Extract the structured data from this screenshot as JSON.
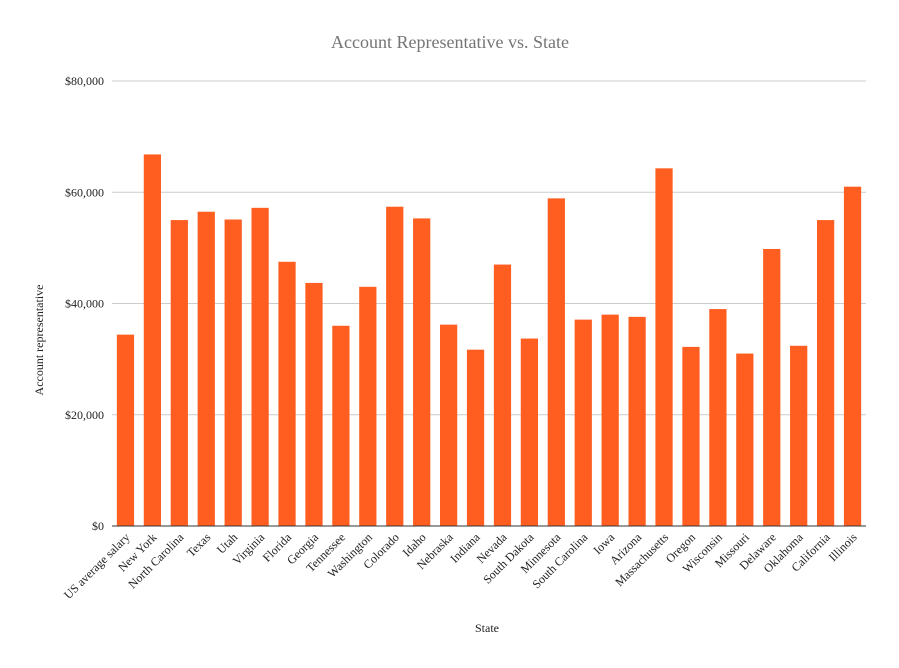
{
  "chart_data": {
    "type": "bar",
    "title": "Account Representative vs. State",
    "xlabel": "State",
    "ylabel": "Account representative",
    "ylim": [
      0,
      80000
    ],
    "yticks": [
      0,
      20000,
      40000,
      60000,
      80000
    ],
    "ytick_labels": [
      "$0",
      "$20,000",
      "$40,000",
      "$60,000",
      "$80,000"
    ],
    "grid": true,
    "legend": "none",
    "bar_color": "#ff5e20",
    "categories": [
      "US average salary",
      "New York",
      "North Carolina",
      "Texas",
      "Utah",
      "Virginia",
      "Florida",
      "Georgia",
      "Tennessee",
      "Washington",
      "Colorado",
      "Idaho",
      "Nebraska",
      "Indiana",
      "Nevada",
      "South Dakota",
      "Minnesota",
      "South Carolina",
      "Iowa",
      "Arizona",
      "Massachusetts",
      "Oregon",
      "Wisconsin",
      "Missouri",
      "Delaware",
      "Oklahoma",
      "California",
      "Illinois"
    ],
    "values": [
      34400,
      66800,
      55000,
      56500,
      55100,
      57200,
      47500,
      43700,
      36000,
      43000,
      57400,
      55300,
      36200,
      31700,
      47000,
      33700,
      58900,
      37100,
      38000,
      37600,
      64300,
      32200,
      39000,
      31000,
      49800,
      32400,
      55000,
      61000
    ]
  }
}
